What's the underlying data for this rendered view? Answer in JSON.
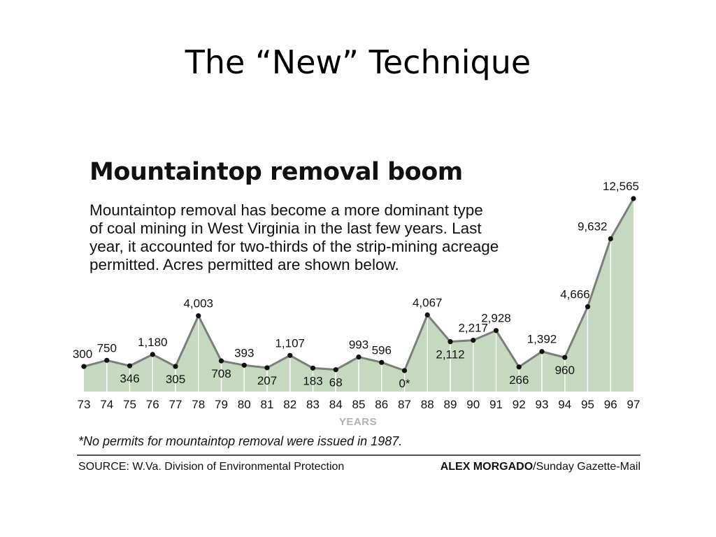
{
  "slide": {
    "title": "The “New” Technique"
  },
  "chart": {
    "title": "Mountaintop removal boom",
    "subtitle_lines": [
      "Mountaintop removal has become a more dominant type",
      "of coal mining in West Virginia in the last few years. Last",
      "year, it accounted for two-thirds of the strip-mining acreage",
      "permitted. Acres permitted are shown below."
    ],
    "footnote": "*No permits for mountaintop removal were issued in 1987.",
    "source": "SOURCE: W.Va. Division of Environmental Protection",
    "credit_name": "ALEX MORGADO",
    "credit_org": "/Sunday Gazette-Mail"
  },
  "chart_data": {
    "type": "area",
    "title": "Mountaintop removal boom",
    "xlabel": "YEARS",
    "ylabel": "",
    "ylim": [
      0,
      12565
    ],
    "grid": "vertical",
    "fill_color": "#c6d8bf",
    "grid_color": "#ffffff",
    "line_color": "#7d7d7d",
    "point_color": "#111111",
    "x": [
      "73",
      "74",
      "75",
      "76",
      "77",
      "78",
      "79",
      "80",
      "81",
      "82",
      "83",
      "84",
      "85",
      "86",
      "87",
      "88",
      "89",
      "90",
      "91",
      "92",
      "93",
      "94",
      "95",
      "96",
      "97"
    ],
    "values": [
      300,
      750,
      346,
      1180,
      305,
      4003,
      708,
      393,
      207,
      1107,
      183,
      68,
      993,
      596,
      0,
      4067,
      2112,
      2217,
      2928,
      266,
      1392,
      960,
      4666,
      9632,
      12565
    ],
    "data_labels": [
      "300",
      "750",
      "346",
      "1,180",
      "305",
      "4,003",
      "708",
      "393",
      "207",
      "1,107",
      "183",
      "68",
      "993",
      "596",
      "0*",
      "4,067",
      "2,112",
      "2,217",
      "2,928",
      "266",
      "1,392",
      "960",
      "4,666",
      "9,632",
      "12,565"
    ]
  }
}
